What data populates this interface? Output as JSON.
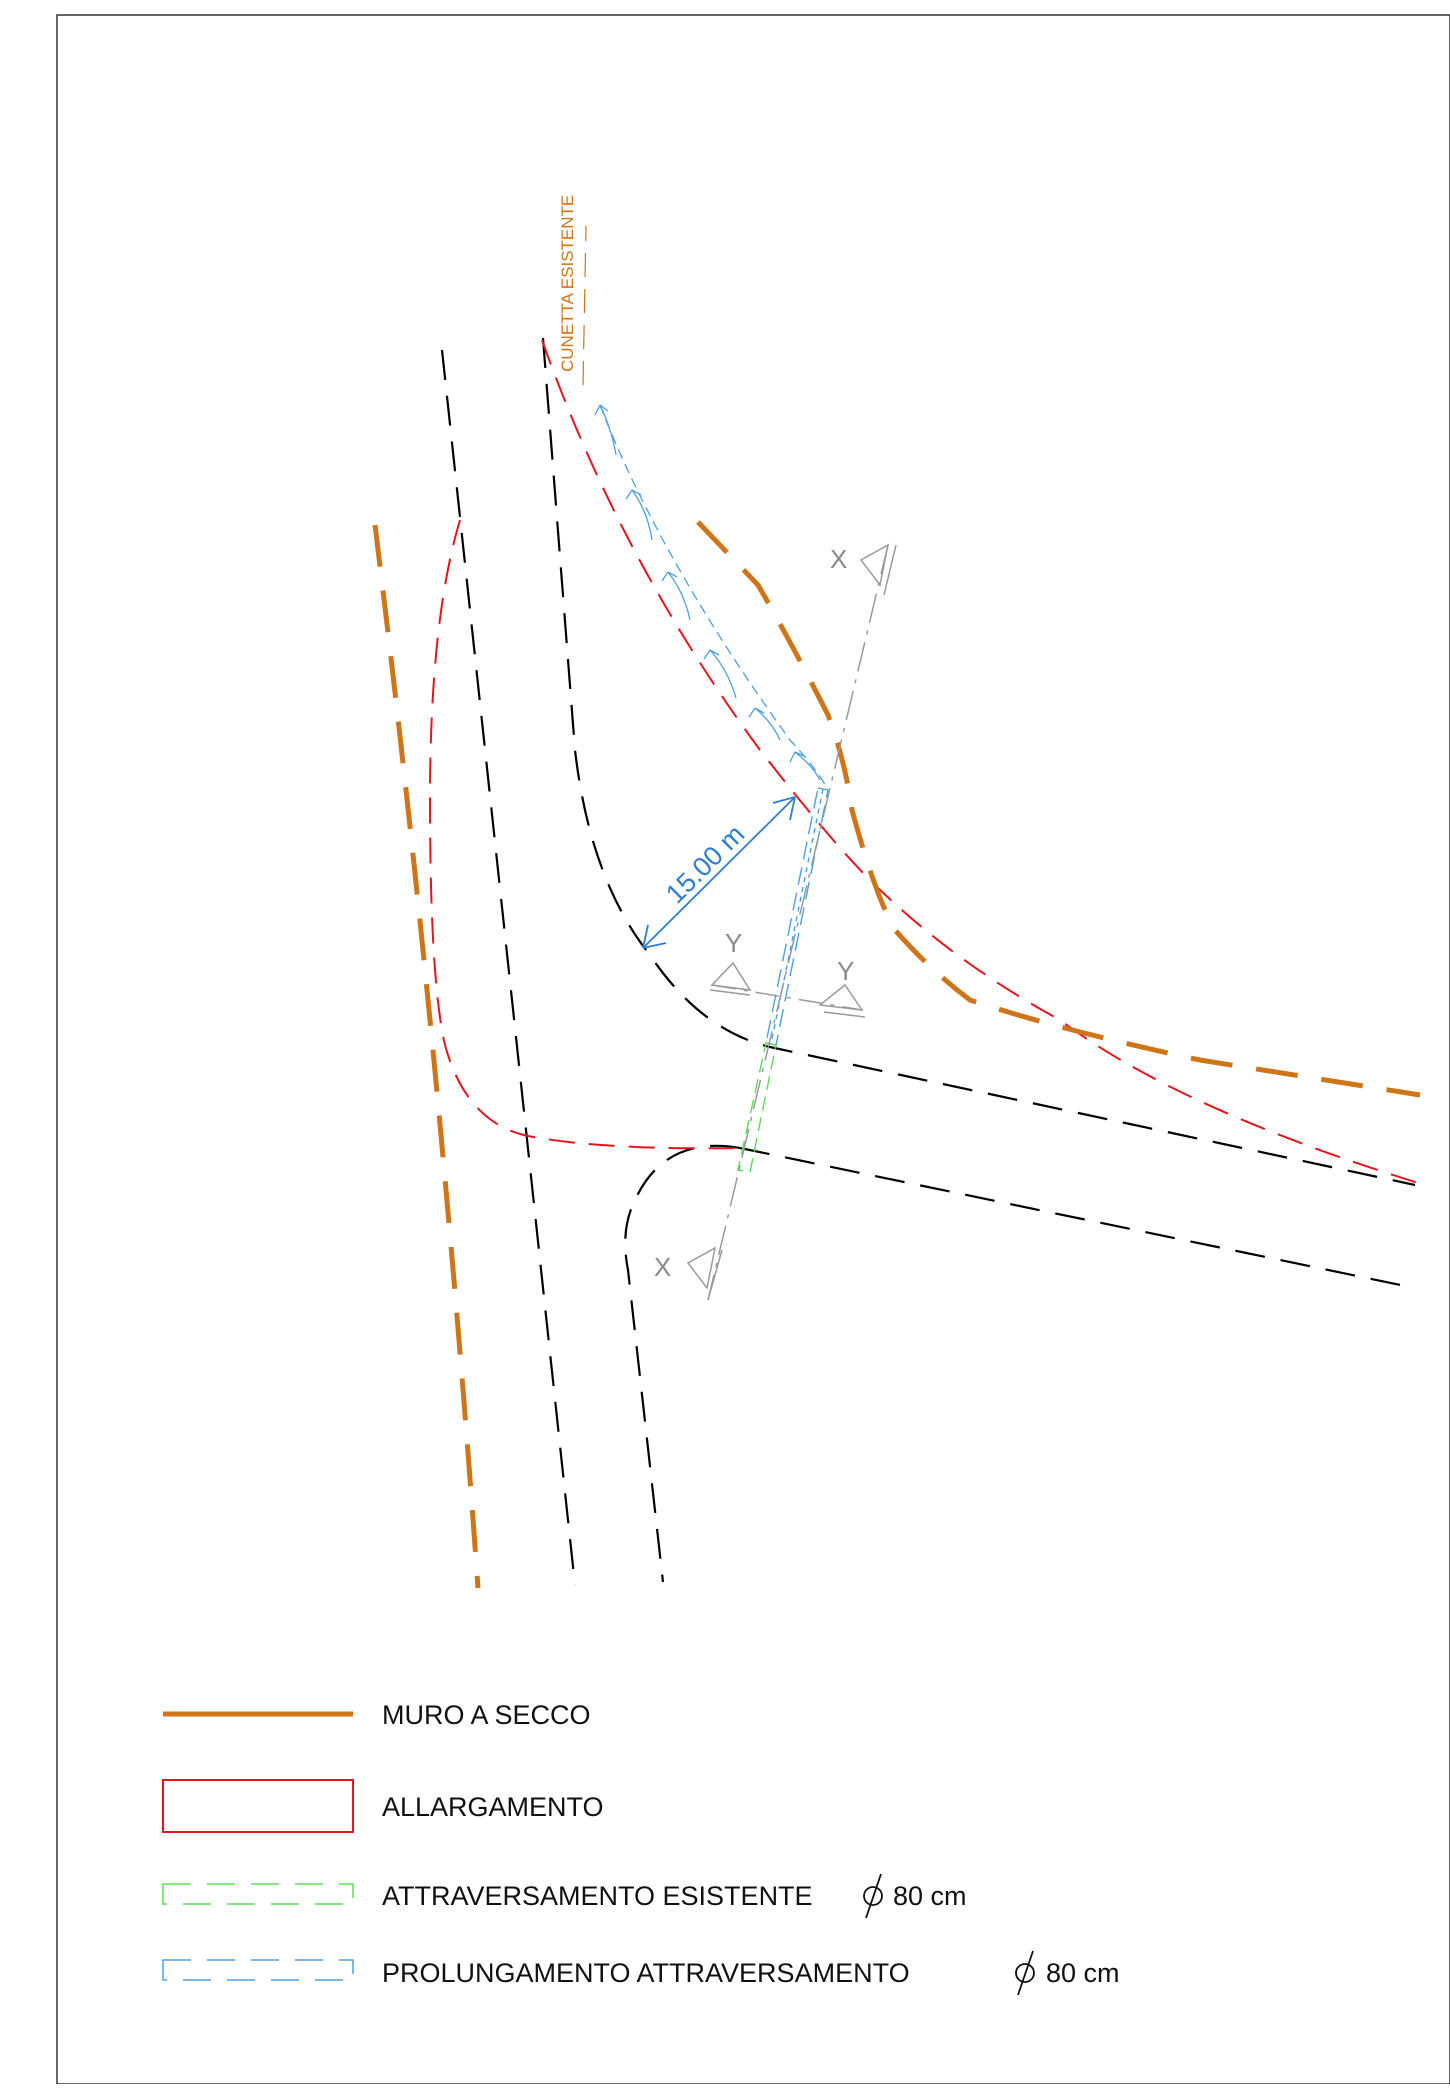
{
  "colors": {
    "road": "#000000",
    "muro": "#d07418",
    "allargamento": "#e4151b",
    "esistente": "#55e055",
    "prolungamento": "#4aa0e8",
    "section": "#9a9a9a",
    "cunetta_label": "#d07418",
    "dimension": "#2a7fd4"
  },
  "labels": {
    "cunetta": "CUNETTA ESISTENTE",
    "dimension": "15.00 m",
    "section_x_top": "X",
    "section_x_bottom": "X",
    "section_y_left": "Y",
    "section_y_right": "Y"
  },
  "legend": {
    "muro": "MURO A SECCO",
    "allargamento": "ALLARGAMENTO",
    "esistente": "ATTRAVERSAMENTO ESISTENTE",
    "esistente_size": "80 cm",
    "prolungamento": "PROLUNGAMENTO ATTRAVERSAMENTO",
    "prolungamento_size": "80 cm"
  }
}
